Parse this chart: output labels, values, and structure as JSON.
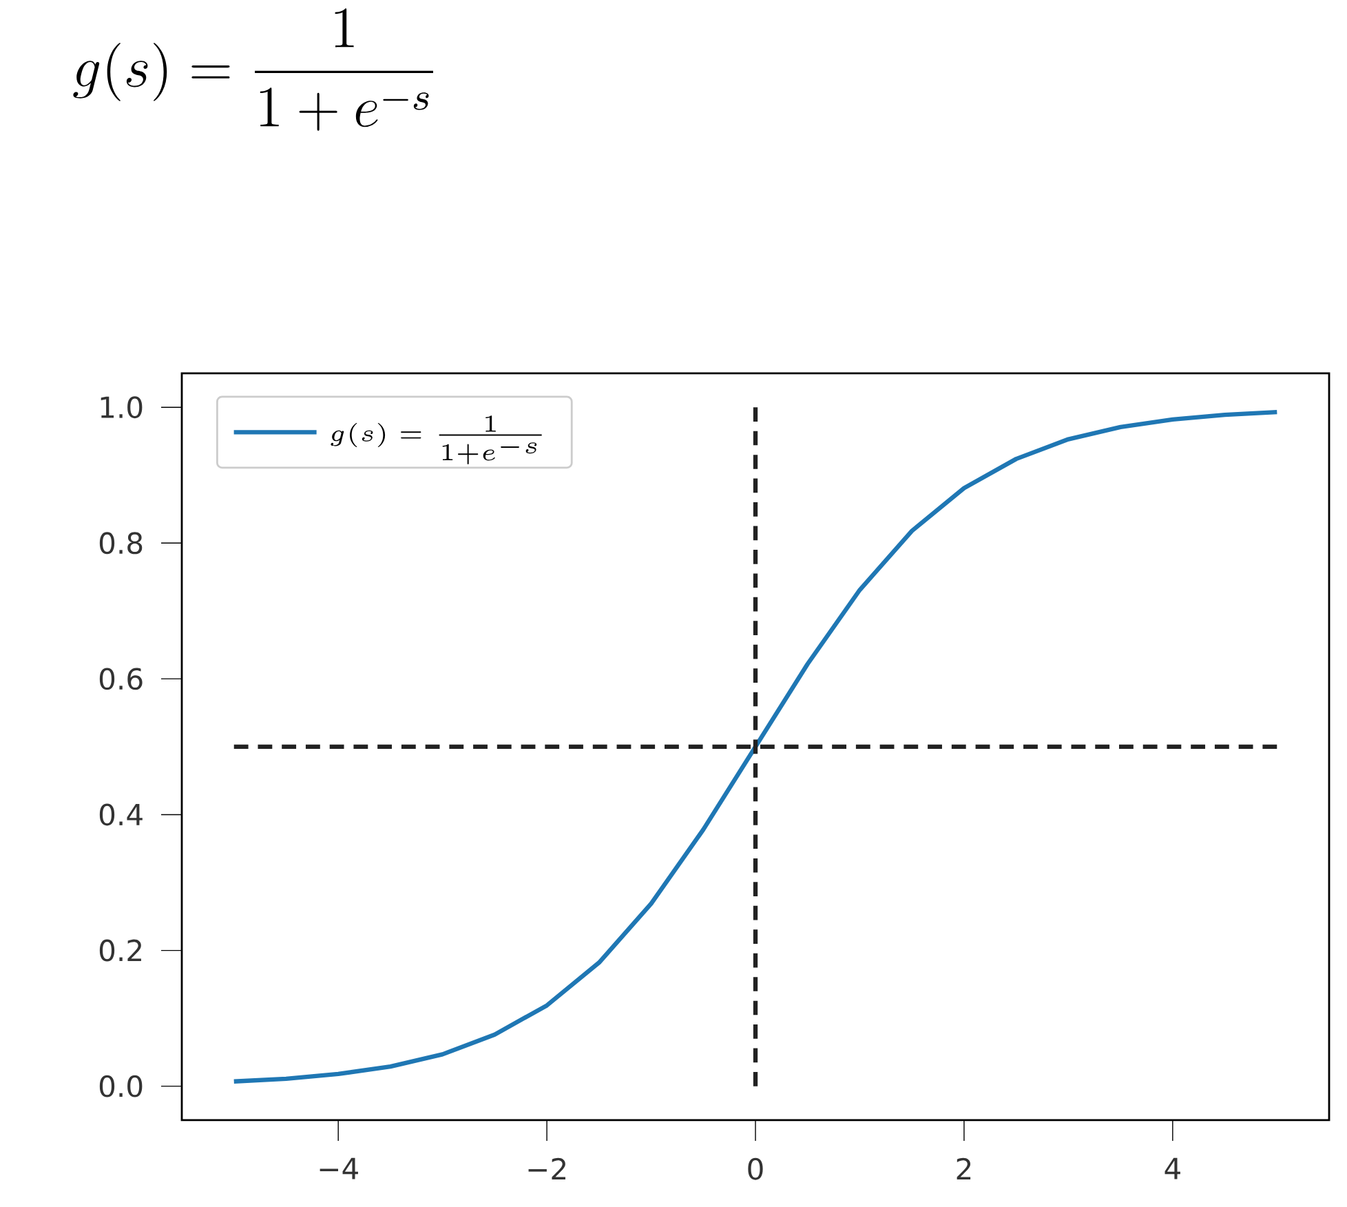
{
  "chart_data": {
    "type": "line",
    "title": "g(s) = \\frac{1}{1+e^{-s}}",
    "xlim": [
      -5.5,
      5.5
    ],
    "ylim": [
      -0.05,
      1.05
    ],
    "xticks": [
      {
        "value": -4,
        "label": "−4"
      },
      {
        "value": -2,
        "label": "−2"
      },
      {
        "value": 0,
        "label": "0"
      },
      {
        "value": 2,
        "label": "2"
      },
      {
        "value": 4,
        "label": "4"
      }
    ],
    "yticks": [
      {
        "value": 0,
        "label": "0.0"
      },
      {
        "value": 0.2,
        "label": "0.2"
      },
      {
        "value": 0.4,
        "label": "0.4"
      },
      {
        "value": 0.6,
        "label": "0.6"
      },
      {
        "value": 0.8,
        "label": "0.8"
      },
      {
        "value": 1,
        "label": "1.0"
      }
    ],
    "legend": "top left",
    "grid": false,
    "series": [
      {
        "name": "g(s) = \\frac{1}{1+e^{-s}}",
        "color": "#1f77b4",
        "line_style": "solid",
        "x": [
          -5,
          -4.5,
          -4,
          -3.5,
          -3,
          -2.5,
          -2,
          -1.5,
          -1,
          -0.5,
          0,
          0.5,
          1,
          1.5,
          2,
          2.5,
          3,
          3.5,
          4,
          4.5,
          5
        ],
        "values": [
          0.007,
          0.011,
          0.018,
          0.029,
          0.047,
          0.076,
          0.119,
          0.182,
          0.269,
          0.378,
          0.5,
          0.622,
          0.731,
          0.818,
          0.881,
          0.924,
          0.953,
          0.971,
          0.982,
          0.989,
          0.993
        ]
      },
      {
        "color": "#222222",
        "line_style": "dashed",
        "x": [
          0,
          0
        ],
        "values": [
          0,
          1
        ]
      },
      {
        "color": "#222222",
        "line_style": "dashed",
        "x": [
          -5,
          5
        ],
        "values": [
          0.5,
          0.5
        ]
      }
    ]
  }
}
